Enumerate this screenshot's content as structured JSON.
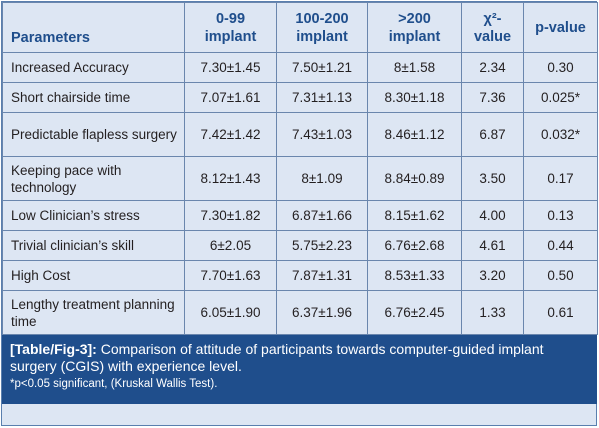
{
  "table": {
    "headers": [
      "Parameters",
      "0-99 implant",
      "100-200 implant",
      ">200 implant",
      "χ²-value",
      "p-value"
    ],
    "rows": [
      {
        "param": "Increased Accuracy",
        "a": "7.30±1.45",
        "b": "7.50±1.21",
        "c": "8±1.58",
        "chi": "2.34",
        "p": "0.30"
      },
      {
        "param": "Short chairside time",
        "a": "7.07±1.61",
        "b": "7.31±1.13",
        "c": "8.30±1.18",
        "chi": "7.36",
        "p": "0.025*"
      },
      {
        "param": "Predictable flapless surgery",
        "a": "7.42±1.42",
        "b": "7.43±1.03",
        "c": "8.46±1.12",
        "chi": "6.87",
        "p": "0.032*"
      },
      {
        "param": "Keeping pace with technology",
        "a": "8.12±1.43",
        "b": "8±1.09",
        "c": "8.84±0.89",
        "chi": "3.50",
        "p": "0.17"
      },
      {
        "param": "Low Clinician’s stress",
        "a": "7.30±1.82",
        "b": "6.87±1.66",
        "c": "8.15±1.62",
        "chi": "4.00",
        "p": "0.13"
      },
      {
        "param": "Trivial clinician’s skill",
        "a": "6±2.05",
        "b": "5.75±2.23",
        "c": "6.76±2.68",
        "chi": "4.61",
        "p": "0.44"
      },
      {
        "param": "High Cost",
        "a": "7.70±1.63",
        "b": "7.87±1.31",
        "c": "8.53±1.33",
        "chi": "3.20",
        "p": "0.50"
      },
      {
        "param": "Lengthy treatment planning time",
        "a": "6.05±1.90",
        "b": "6.37±1.96",
        "c": "6.76±2.45",
        "chi": "1.33",
        "p": "0.61"
      }
    ]
  },
  "caption": {
    "label": "[Table/Fig-3]:",
    "text": " Comparison of attitude of participants towards computer-guided implant surgery (CGIS) with experience level.",
    "note": "*p<0.05 significant, (Kruskal Wallis Test)."
  },
  "colors": {
    "header_text": "#1f4e8c",
    "cell_background": "#dde6f3",
    "caption_background": "#1f4e8c",
    "border": "#6a86ad"
  }
}
